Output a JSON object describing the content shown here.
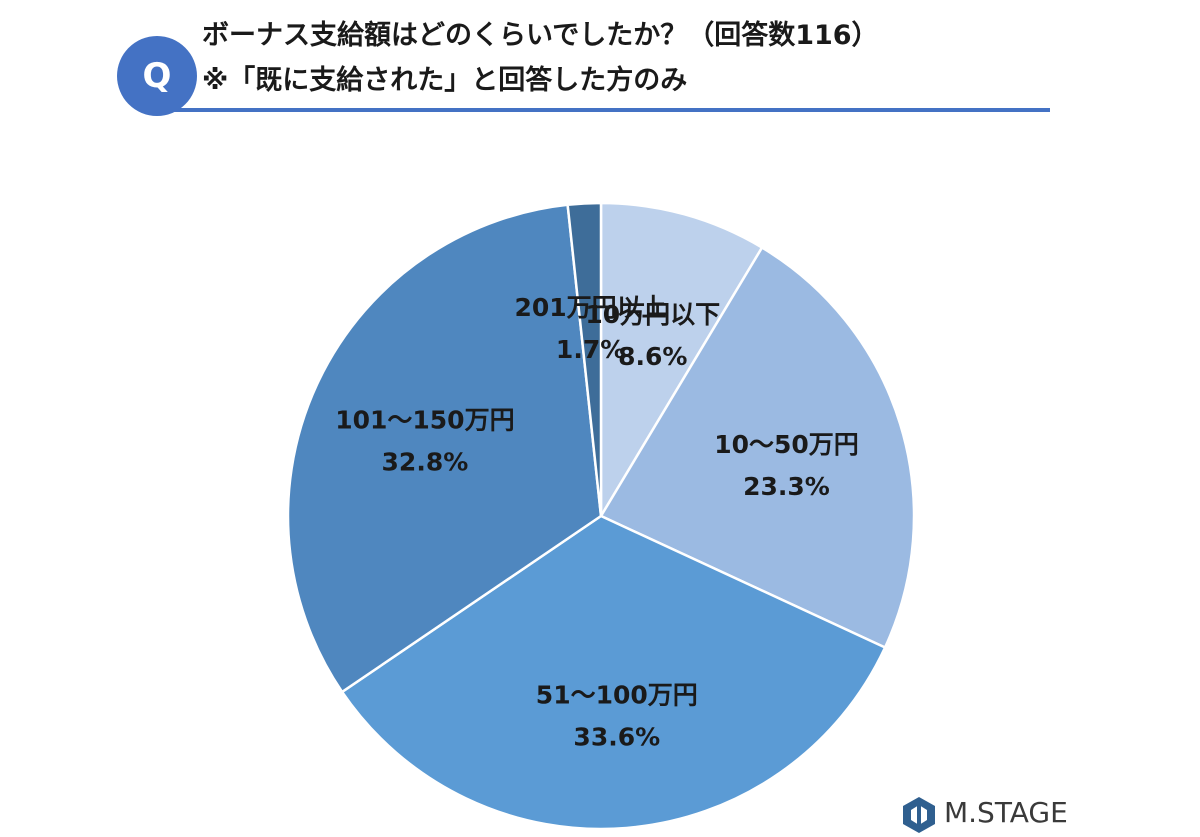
{
  "header": {
    "badge_letter": "Q",
    "title_line1": "ボーナス支給額はどのくらいでしたか？（回答数116）",
    "title_line2": "※「既に支給された」と回答した方のみ",
    "accent_color": "#4472c4"
  },
  "chart_data": {
    "type": "pie",
    "slices": [
      {
        "label": "10万円以下",
        "value": 8.6,
        "value_label": "8.6%",
        "color": "#bdd1ec"
      },
      {
        "label": "10～50万円",
        "value": 23.3,
        "value_label": "23.3%",
        "color": "#9bbae2"
      },
      {
        "label": "51～100万円",
        "value": 33.6,
        "value_label": "33.6%",
        "color": "#5b9bd5"
      },
      {
        "label": "101～150万円",
        "value": 32.8,
        "value_label": "32.8%",
        "color": "#4f87bf"
      },
      {
        "label": "201万円以上",
        "value": 1.7,
        "value_label": "1.7%",
        "color": "#3e6d99"
      }
    ]
  },
  "logo": {
    "text": "M.STAGE",
    "icon": "hexagon-logo-icon"
  }
}
